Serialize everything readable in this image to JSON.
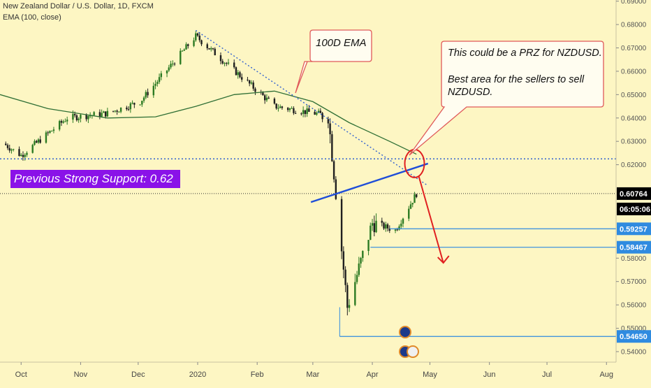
{
  "header": {
    "title": "New Zealand Dollar / U.S. Dollar, 1D, FXCM",
    "indicator": "EMA (100, close)"
  },
  "annotations": {
    "support_label": "Previous Strong Support: 0.62",
    "ema_callout": "100D EMA",
    "prz_line1": "This could be a PRZ for NZDUSD.",
    "prz_line2": "Best area for the sellers to sell",
    "prz_line3": "NZDUSD."
  },
  "colors": {
    "background": "#fdf6c3",
    "candle_up": "#2b7a22",
    "candle_down": "#1f1f1f",
    "ema": "#2f6f35",
    "trend_blue": "#1f4ed8",
    "dotted_blue": "#3060d0",
    "level_blue": "#2f8be0",
    "arrow_red": "#e02020",
    "support_bg": "#8a12e8",
    "callout_border": "#e05a5a"
  },
  "chart_data": {
    "type": "line",
    "title": "New Zealand Dollar / U.S. Dollar, 1D, FXCM",
    "xlabel": "",
    "ylabel": "",
    "ylim": [
      0.5355,
      0.6905
    ],
    "x_ticks": [
      "Oct",
      "Nov",
      "Dec",
      "2020",
      "Feb",
      "Mar",
      "Apr",
      "May",
      "Jun",
      "Jul",
      "Aug"
    ],
    "y_ticks": [
      "0.69000",
      "0.68000",
      "0.67000",
      "0.66000",
      "0.65000",
      "0.64000",
      "0.63000",
      "0.62000",
      "0.58000",
      "0.57000",
      "0.56000",
      "0.55000",
      "0.54000"
    ],
    "series": [
      {
        "name": "EMA (100, close)",
        "x": [
          "2019-09-20",
          "2019-10-15",
          "2019-11-15",
          "2019-12-10",
          "2019-12-31",
          "2020-01-20",
          "2020-02-10",
          "2020-03-01",
          "2020-03-20",
          "2020-04-10",
          "2020-04-24"
        ],
        "values": [
          0.65,
          0.644,
          0.64,
          0.6405,
          0.645,
          0.65,
          0.6515,
          0.647,
          0.638,
          0.63,
          0.6245
        ]
      }
    ],
    "price_key_points": [
      {
        "date": "2019-09-22",
        "price": 0.629
      },
      {
        "date": "2019-10-01",
        "price": 0.624
      },
      {
        "date": "2019-10-25",
        "price": 0.64
      },
      {
        "date": "2019-11-15",
        "price": 0.642
      },
      {
        "date": "2019-12-02",
        "price": 0.647
      },
      {
        "date": "2019-12-31",
        "price": 0.675
      },
      {
        "date": "2020-02-10",
        "price": 0.645
      },
      {
        "date": "2020-03-09",
        "price": 0.641
      },
      {
        "date": "2020-03-19",
        "price": 0.559
      },
      {
        "date": "2020-04-01",
        "price": 0.595
      },
      {
        "date": "2020-04-13",
        "price": 0.592
      },
      {
        "date": "2020-04-24",
        "price": 0.6076
      }
    ],
    "price_levels": [
      {
        "label": "0.60764",
        "value": 0.60764,
        "style": "current"
      },
      {
        "label": "06:05:06",
        "value": null,
        "style": "countdown"
      },
      {
        "label": "0.59257",
        "value": 0.59257,
        "style": "level"
      },
      {
        "label": "0.58467",
        "value": 0.58467,
        "style": "level"
      },
      {
        "label": "0.54650",
        "value": 0.5465,
        "style": "level"
      }
    ],
    "horizontal_lines": [
      {
        "value": 0.6225,
        "style": "dotted",
        "note": "previous strong support"
      }
    ],
    "trendlines": [
      {
        "from": {
          "date": "2019-12-31",
          "price": 0.6775
        },
        "to": {
          "date": "2020-04-30",
          "price": 0.611
        },
        "style": "dotted"
      },
      {
        "from": {
          "date": "2020-02-29",
          "price": 0.604
        },
        "to": {
          "date": "2020-04-30",
          "price": 0.6205
        },
        "style": "solid"
      }
    ],
    "grid": false,
    "legend": "top-left"
  }
}
